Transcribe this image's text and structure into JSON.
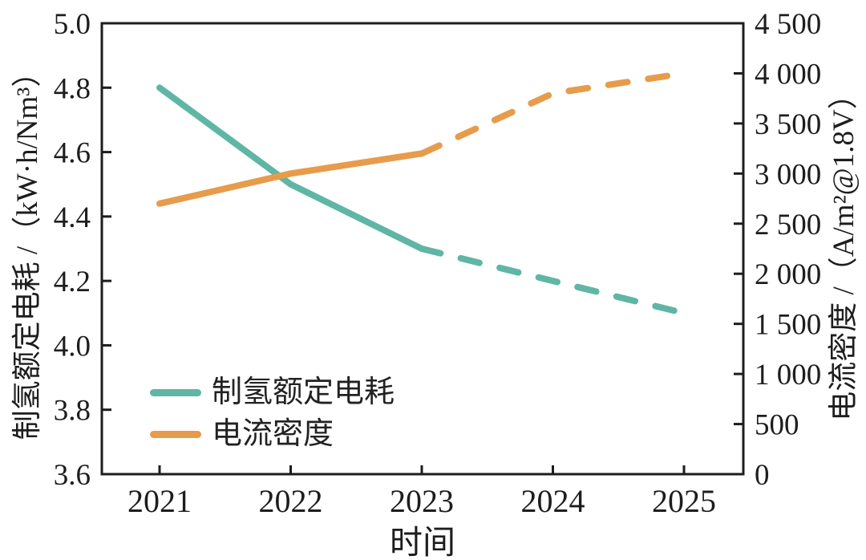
{
  "chart_data": {
    "type": "line",
    "x": [
      2021,
      2022,
      2023,
      2024,
      2025
    ],
    "x_tick_labels": [
      "2021",
      "2022",
      "2023",
      "2024",
      "2025"
    ],
    "xlabel": "时间",
    "left_axis": {
      "label": "制氢额定电耗 /（kW·h/Nm³）",
      "ylim": [
        3.6,
        5.0
      ],
      "tick_values": [
        5.0,
        4.8,
        4.6,
        4.4,
        4.2,
        4.0,
        3.8,
        3.6
      ],
      "tick_labels": [
        "5.0",
        "4.8",
        "4.6",
        "4.4",
        "4.2",
        "4.0",
        "3.8",
        "3.6"
      ]
    },
    "right_axis": {
      "label": "电流密度 /（A/m²@1.8V）",
      "ylim": [
        0,
        4500
      ],
      "tick_values": [
        4500,
        4000,
        3500,
        3000,
        2500,
        2000,
        1500,
        1000,
        500,
        0
      ],
      "tick_labels": [
        "4 500",
        "4 000",
        "3 500",
        "3 000",
        "2 500",
        "2 000",
        "1 500",
        "1 000",
        "500",
        "0"
      ]
    },
    "series": [
      {
        "name": "制氢额定电耗",
        "axis": "left",
        "color": "#5fb6a5",
        "values": [
          4.8,
          4.5,
          4.3,
          4.2,
          4.1
        ],
        "solid_through_index": 2,
        "style_after": "dashed"
      },
      {
        "name": "电流密度",
        "axis": "right",
        "color": "#e69c4b",
        "values": [
          2700,
          3000,
          3200,
          3800,
          4000
        ],
        "solid_through_index": 2,
        "style_after": "dashed"
      }
    ],
    "legend_position": "lower-left",
    "grid": false,
    "axis_color": "#1d1d1d"
  }
}
